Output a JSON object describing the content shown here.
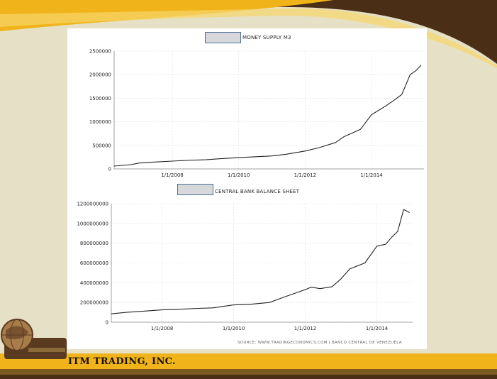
{
  "brand": {
    "company_name": "ITM TRADING, INC.",
    "colors": {
      "gold": "#f0b41a",
      "brown": "#4a2e16",
      "cream": "#e6e1c6"
    }
  },
  "source_text": "SOURCE: WWW.TRADINGECONOMICS.COM | BANCO CENTRAL DE VENEZUELA",
  "chart_data": [
    {
      "type": "line",
      "title": "MONEY SUPPLY M3",
      "xlabel": "",
      "ylabel": "",
      "grid": true,
      "ylim": [
        0,
        2500000
      ],
      "yticks": [
        0,
        500000,
        1000000,
        1500000,
        2000000,
        2500000
      ],
      "ytick_labels": [
        "0",
        "500000",
        "1000000",
        "1500000",
        "2000000",
        "2500000"
      ],
      "xlim": [
        "2006-04-01",
        "2015-08-01"
      ],
      "xticks": [
        "2008-01-01",
        "2010-01-01",
        "2012-01-01",
        "2014-01-01"
      ],
      "xtick_labels": [
        "1/1/2008",
        "1/1/2010",
        "1/1/2012",
        "1/1/2014"
      ],
      "series": [
        {
          "x": [
            "2006-04-01",
            "2006-10-01",
            "2007-01-01",
            "2007-06-01",
            "2008-01-01",
            "2008-06-01",
            "2009-01-01",
            "2009-06-01",
            "2010-01-01",
            "2010-06-01",
            "2011-01-01",
            "2011-06-01",
            "2012-01-01",
            "2012-06-01",
            "2012-12-01",
            "2013-03-01",
            "2013-09-01",
            "2014-01-01",
            "2014-06-01",
            "2014-09-01",
            "2014-12-01",
            "2015-03-01",
            "2015-05-01",
            "2015-07-01"
          ],
          "y": [
            60000,
            90000,
            125000,
            145000,
            165000,
            180000,
            195000,
            215000,
            240000,
            255000,
            275000,
            310000,
            380000,
            450000,
            560000,
            680000,
            840000,
            1150000,
            1330000,
            1450000,
            1580000,
            2000000,
            2080000,
            2200000
          ]
        }
      ]
    },
    {
      "type": "line",
      "title": "CENTRAL BANK BALANCE SHEET",
      "xlabel": "",
      "ylabel": "",
      "grid": true,
      "ylim": [
        0,
        1200000000
      ],
      "yticks": [
        0,
        200000000,
        400000000,
        600000000,
        800000000,
        1000000000,
        1200000000
      ],
      "ytick_labels": [
        "0",
        "200000000",
        "400000000",
        "600000000",
        "800000000",
        "1000000000",
        "1200000000"
      ],
      "xlim": [
        "2006-08-01",
        "2015-01-01"
      ],
      "xticks": [
        "2008-01-01",
        "2010-01-01",
        "2012-01-01",
        "2014-01-01"
      ],
      "xtick_labels": [
        "1/1/2008",
        "1/1/2010",
        "1/1/2012",
        "1/1/2014"
      ],
      "series": [
        {
          "x": [
            "2006-08-01",
            "2007-01-01",
            "2007-06-01",
            "2008-01-01",
            "2008-06-01",
            "2009-01-01",
            "2009-06-01",
            "2010-01-01",
            "2010-06-01",
            "2011-01-01",
            "2011-06-01",
            "2012-01-01",
            "2012-03-01",
            "2012-06-01",
            "2012-10-01",
            "2013-01-01",
            "2013-04-01",
            "2013-09-01",
            "2014-01-01",
            "2014-04-01",
            "2014-06-01",
            "2014-08-01",
            "2014-10-01",
            "2014-12-01"
          ],
          "y": [
            85000000,
            100000000,
            110000000,
            125000000,
            130000000,
            140000000,
            145000000,
            175000000,
            180000000,
            200000000,
            255000000,
            330000000,
            355000000,
            340000000,
            360000000,
            440000000,
            540000000,
            600000000,
            770000000,
            790000000,
            860000000,
            920000000,
            1140000000,
            1110000000
          ]
        }
      ]
    }
  ]
}
